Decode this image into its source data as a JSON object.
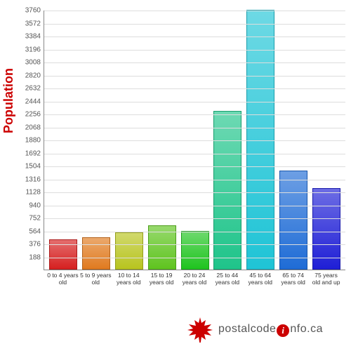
{
  "chart": {
    "type": "bar",
    "ylabel": "Population",
    "ylabel_color": "#cc0000",
    "ylabel_fontsize": 18,
    "background_color": "#ffffff",
    "grid_color": "#dddddd",
    "axis_color": "#888888",
    "ylim": [
      0,
      3760
    ],
    "ytick_step": 188,
    "yticks": [
      188,
      376,
      564,
      752,
      940,
      1128,
      1316,
      1504,
      1692,
      1880,
      2068,
      2256,
      2444,
      2632,
      2820,
      3008,
      3196,
      3384,
      3572,
      3760
    ],
    "categories": [
      "0 to 4 years old",
      "5 to 9 years old",
      "10 to 14 years old",
      "15 to 19 years old",
      "20 to 24 years old",
      "25 to 44 years old",
      "45 to 64 years old",
      "65 to 74 years old",
      "75 years old and up"
    ],
    "values": [
      440,
      470,
      540,
      640,
      560,
      2300,
      3760,
      1430,
      1180
    ],
    "bar_colors": [
      "#d62020",
      "#e07a1f",
      "#b8c41f",
      "#5fc41f",
      "#1fc41f",
      "#1fc48a",
      "#1fc4d6",
      "#1f6cd6",
      "#1f1fd6"
    ],
    "bar_width": 0.85,
    "xlabel_fontsize": 8.5,
    "ytick_fontsize": 10
  },
  "footer": {
    "brand_pre": "postalcode",
    "brand_badge": "i",
    "brand_post": "nfo.ca",
    "maple_color": "#cc0000"
  }
}
